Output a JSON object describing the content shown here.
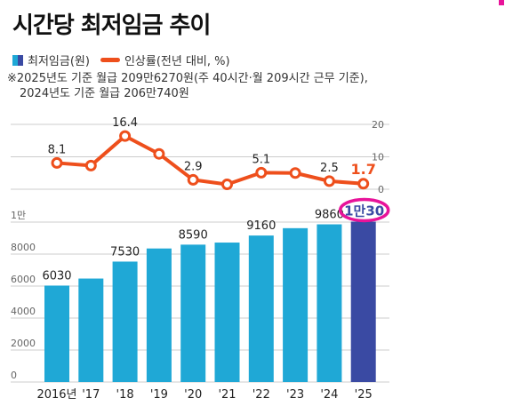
{
  "title": "시간당 최저임금 추이",
  "legend": {
    "bar_label": "최저임금(원)",
    "line_label": "인상률(전년 대비, %)"
  },
  "note": {
    "line1": "※2025년도 기준 월급 209만6270원(주 40시간·월 209시간 근무 기준),",
    "line2": "2024년도 기준 월급 206만740원"
  },
  "colors": {
    "bar": "#1fa8d6",
    "bar_highlight": "#3a4aa3",
    "line": "#ee4f1c",
    "highlight_label": "#ee4f1c",
    "circle": "#e8139a",
    "axis_text": "#666666",
    "grid": "#cccccc"
  },
  "chart_data": [
    {
      "type": "bar",
      "categories": [
        "2016년",
        "'17",
        "'18",
        "'19",
        "'20",
        "'21",
        "'22",
        "'23",
        "'24",
        "'25"
      ],
      "series": [
        {
          "name": "최저임금(원)",
          "values": [
            6030,
            6470,
            7530,
            8350,
            8590,
            8720,
            9160,
            9620,
            9860,
            10030
          ]
        }
      ],
      "data_labels": [
        "6030",
        "",
        "7530",
        "",
        "8590",
        "",
        "9160",
        "",
        "9860",
        "1만30"
      ],
      "y_ticks": [
        "0",
        "2000",
        "4000",
        "6000",
        "8000",
        "1만"
      ],
      "ylim": [
        0,
        10000
      ],
      "highlight_index": 9
    },
    {
      "type": "line",
      "categories": [
        "2016년",
        "'17",
        "'18",
        "'19",
        "'20",
        "'21",
        "'22",
        "'23",
        "'24",
        "'25"
      ],
      "series": [
        {
          "name": "인상률(전년 대비, %)",
          "values": [
            8.1,
            7.3,
            16.4,
            10.9,
            2.9,
            1.5,
            5.1,
            5.0,
            2.5,
            1.7
          ]
        }
      ],
      "data_labels": [
        "8.1",
        "",
        "16.4",
        "",
        "2.9",
        "",
        "5.1",
        "",
        "2.5",
        "1.7"
      ],
      "y_ticks": [
        "0",
        "10",
        "20"
      ],
      "ylim": [
        0,
        20
      ],
      "highlight_index": 9
    }
  ]
}
